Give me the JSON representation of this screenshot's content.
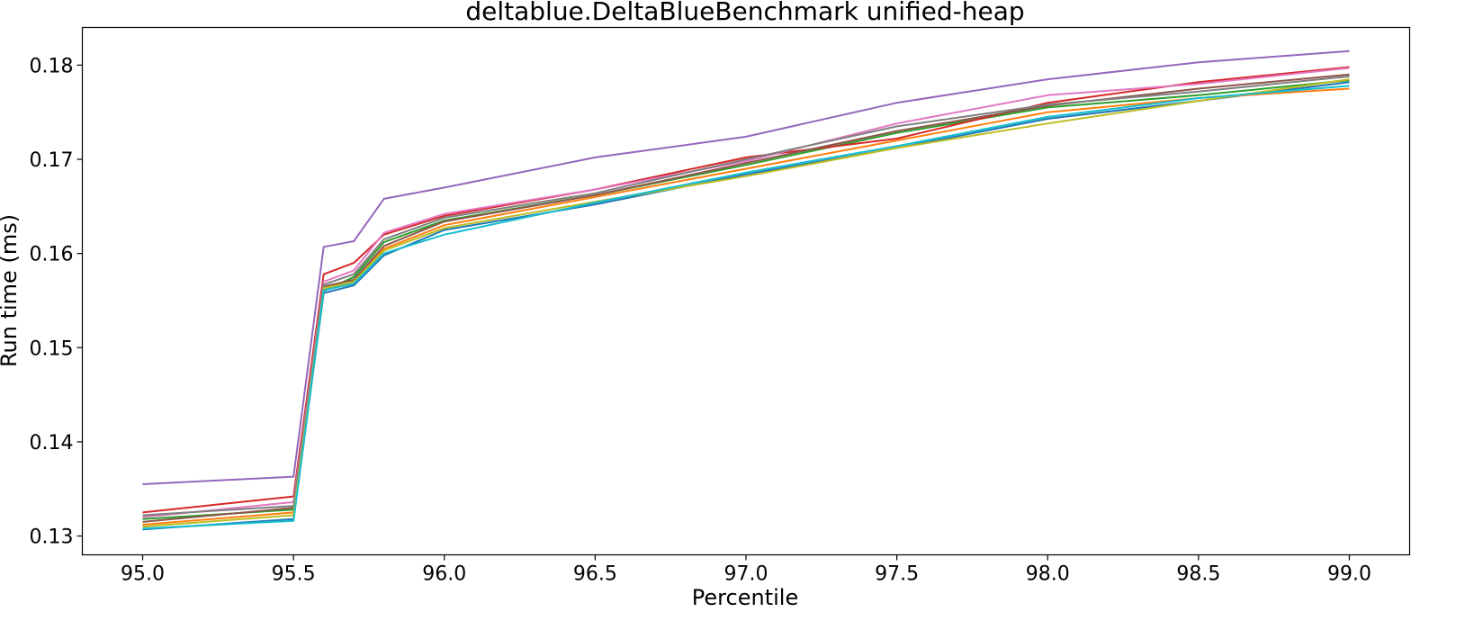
{
  "chart_data": {
    "type": "line",
    "title": "deltablue.DeltaBlueBenchmark unified-heap",
    "xlabel": "Percentile",
    "ylabel": "Run time (ms)",
    "xlim": [
      94.8,
      99.2
    ],
    "ylim": [
      0.128,
      0.184
    ],
    "xticks": [
      95.0,
      95.5,
      96.0,
      96.5,
      97.0,
      97.5,
      98.0,
      98.5,
      99.0
    ],
    "xtick_labels": [
      "95.0",
      "95.5",
      "96.0",
      "96.5",
      "97.0",
      "97.5",
      "98.0",
      "98.5",
      "99.0"
    ],
    "yticks": [
      0.13,
      0.14,
      0.15,
      0.16,
      0.17,
      0.18
    ],
    "ytick_labels": [
      "0.13",
      "0.14",
      "0.15",
      "0.16",
      "0.17",
      "0.18"
    ],
    "grid": false,
    "legend": "none",
    "x": [
      95.0,
      95.5,
      95.6,
      95.7,
      95.8,
      96.0,
      96.5,
      97.0,
      97.5,
      98.0,
      98.5,
      99.0
    ],
    "series": [
      {
        "color": "#1f77b4",
        "values": [
          0.1307,
          0.1318,
          0.1558,
          0.1566,
          0.1598,
          0.1625,
          0.1652,
          0.1684,
          0.1712,
          0.1743,
          0.1762,
          0.1782
        ]
      },
      {
        "color": "#ff7f0e",
        "values": [
          0.1312,
          0.1325,
          0.1562,
          0.157,
          0.1605,
          0.163,
          0.166,
          0.169,
          0.172,
          0.175,
          0.1765,
          0.1775
        ]
      },
      {
        "color": "#2ca02c",
        "values": [
          0.1318,
          0.1328,
          0.156,
          0.1575,
          0.1612,
          0.1635,
          0.1662,
          0.1694,
          0.1728,
          0.1755,
          0.1768,
          0.1784
        ]
      },
      {
        "color": "#d62728",
        "values": [
          0.1325,
          0.1342,
          0.1578,
          0.159,
          0.162,
          0.164,
          0.1668,
          0.1702,
          0.1722,
          0.176,
          0.1782,
          0.1798
        ]
      },
      {
        "color": "#9467bd",
        "values": [
          0.1355,
          0.1363,
          0.1607,
          0.1613,
          0.1658,
          0.167,
          0.1702,
          0.1724,
          0.176,
          0.1785,
          0.1803,
          0.1815
        ]
      },
      {
        "color": "#8c564b",
        "values": [
          0.1315,
          0.133,
          0.1565,
          0.1572,
          0.1608,
          0.1634,
          0.1662,
          0.1696,
          0.173,
          0.1757,
          0.1775,
          0.179
        ]
      },
      {
        "color": "#e377c2",
        "values": [
          0.132,
          0.1336,
          0.157,
          0.1582,
          0.1622,
          0.1642,
          0.1668,
          0.1698,
          0.1738,
          0.1768,
          0.178,
          0.1797
        ]
      },
      {
        "color": "#7f7f7f",
        "values": [
          0.1322,
          0.1332,
          0.1567,
          0.1578,
          0.1615,
          0.1638,
          0.1664,
          0.17,
          0.1735,
          0.1758,
          0.1772,
          0.1788
        ]
      },
      {
        "color": "#bcbd22",
        "values": [
          0.131,
          0.1322,
          0.1563,
          0.157,
          0.1603,
          0.1627,
          0.1655,
          0.1682,
          0.1712,
          0.1738,
          0.1762,
          0.1785
        ]
      },
      {
        "color": "#17becf",
        "values": [
          0.1308,
          0.1316,
          0.1561,
          0.1568,
          0.16,
          0.162,
          0.1654,
          0.1686,
          0.1714,
          0.1745,
          0.1765,
          0.1778
        ]
      }
    ]
  }
}
